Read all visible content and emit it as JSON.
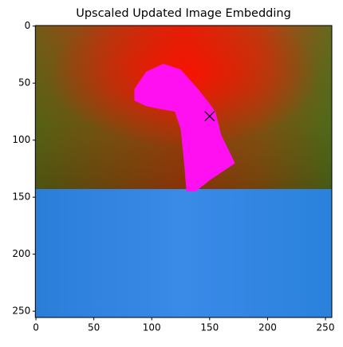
{
  "chart_data": {
    "type": "image",
    "title": "Upscaled Updated Image Embedding",
    "xlim": [
      -0.5,
      255.5
    ],
    "ylim": [
      255.5,
      -0.5
    ],
    "xticks": [
      0,
      50,
      100,
      150,
      200,
      250
    ],
    "yticks": [
      0,
      50,
      100,
      150,
      200,
      250
    ],
    "series": [
      {
        "x": [
          150
        ],
        "values": [
          79
        ],
        "color": "#000000",
        "marker": "x"
      }
    ]
  }
}
